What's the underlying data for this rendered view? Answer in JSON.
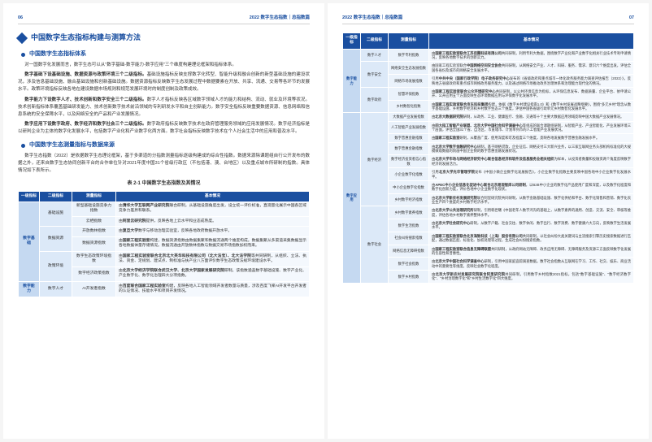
{
  "header": {
    "left_num": "06",
    "right_num": "07",
    "title": "2022 数字生态指数｜总指数篇"
  },
  "left": {
    "title": "中国数字生态指标构建与测算方法",
    "sub1": "中国数字生态指标体系",
    "p1": "对一国数字化发展而言，数字生态可以从\"数字基础-数字能力-数字应用\"三个维度构建理论框架和指标体系。",
    "p2_bold": "数字基础下设基础设施、数据资源与政策环境三个二级指标。",
    "p2": "基础设施指标反映支撑数字化转型、智能升级和融合创新的新型基础设施的建设状况，涉及信息基础设施、融合基础设施和创新基础设施。数据资源指标反映数字生态发展过程中数据要素在开放、共享、流通、交易等各环节的发展水平。政策环境指标反映各地在建设数据市场规则和规范发展环境时的制度创制及政策成效。",
    "p3_bold": "数字能力下设数字人才、技术创新和数字安全三个二级指标。",
    "p3": "数字人才指标反映各区域数字领域人才的能力和结构、流动、就业及环境等状况。技术创新指标体系覆盖基础研发能力、技术创新数字技术前沿领域的专利研发水平和自主创新能力。数字安全指标反映重要数据资源、信息网络和信息系统的安全保障水平，以及网络安全的产品和产业发展情况。",
    "p4_bold": "数字应用下设数字政府、数字经济和数字社会三个二级指标。",
    "p4": "数字政府指标反映数字技术在政府管理服务领域的应用发展情况。数字经济指标是以研判企业为主体的数字化发展水平，包括数字产业化和产业数字化两方面。数字社会指标反映数字技术在个人社会生活中的应用和普及水平。",
    "sub2": "中国数字生态测量指标与数据来源",
    "p5": "数字生态指数（2022）是依据数字生态理论框架，基于多渠道的分指数测量指标逐级构建成的综合性指数。数据来源除课题组自行公开发布的数据之外，还来自数字生态协同创新平台的合作单位针对2021年度中国31个省级行政区（不包括港、澳、台地区）以及重点城市所研制的指数。具体情况如下表所示。",
    "table_caption": "表 2-1  中国数字生态指数及其情况",
    "headers": [
      "一级指标",
      "二级指标",
      "测量指标",
      "基本情况"
    ],
    "rows": [
      {
        "l1": "数字基础",
        "l1rs": 6,
        "l2": "基础设施",
        "l2rs": 2,
        "l3": "新型基础设施竞争力指数",
        "desc": "由<b>清华大学互联网产业研究院</b>联合研制，从基础设施角度出发，设立统一评价标准，直观量化展示中国各区域竞争力差异和联系。"
      },
      {
        "l3": "云栖指数",
        "desc": "由<b>阿里云研究院</b>提供，反映各地上云水平和业态成熟度。"
      },
      {
        "l2": "数据资源",
        "l2rs": 2,
        "l3": "开放数林指数",
        "desc": "由<b>复旦大学</b>数字与移动治理实验室，反映各地政府数据开放水平。"
      },
      {
        "l3": "数据资源指数",
        "desc": "由<b>国家工程实验室</b>构建，数据资源指数由数据集聚和数据流通两个维度构成。数据集聚从多渠道采集数据显示各地数据体量存储情况。数据流通由开放数林指数与数据交易市场指数加权而来。"
      },
      {
        "l2": "政策环境",
        "l2rs": 2,
        "l3": "数字生态政策环境指数",
        "desc": "由<b>国家工程实验室联合北京北大英华科技有限公司（北大法宝）、北大法学院</b>等共同研制，从组织、立法、执法、资金、定规划、建试点、制标准与扶产业八方面评价数字生态政策法规环境建设水平。"
      },
      {
        "l3": "数字经济政策指数",
        "desc": "由<b>北京大学经济学院联合武汉大学、北京大学国家发展研究院</b>研制。该指数涵盖数字基础设施、数字产业化、产业数字化、数字化治理四大分项指数。"
      },
      {
        "l1": "数字能力",
        "l1rs": 1,
        "l2": "数字人才",
        "l2rs": 1,
        "l3": "AI开发者指数",
        "desc": "由<b>百度联合国家工程实验室</b>构建，反映各地人工智能领域开发者数量与质量，涉及百度飞桨AI开发平台开发者的认证情况、技能水平和项目开发情况。"
      }
    ]
  },
  "right_rows": [
    {
      "l1": "数字能力",
      "l1rs": 5,
      "l2": "数字人才",
      "l2rs": 1,
      "l3": "数字专利指数",
      "desc": "由<b>国家工程实验室联合江苏佰腾科技有限公司</b>共同研制，利用专利大数据，围绕数字产业化和产业数字化相关行业技术专利申请情况，反映各地数字技术的创新实力。"
    },
    {
      "l2": "数字安全",
      "l2rs": 2,
      "l3": "网络安全生态发展指数",
      "desc": "由国家工程实验室联合<b>中国网络空间安全协会</b>共同研制，从网络安全产业、人才、科研、服务、需求、意识六个维度出发，评估全国各省份及城市的网络安全发展水平。"
    },
    {
      "l3": "网络市场发展指数",
      "desc": "引用<b>中共中央（国家行政学院）电子政务研究中心</b>发布的《省级政府和重点城市一体化政务服务能力调查评估报告（2022）》，反映地方省级政府和重点城市网络政务服务能力，以及通过网络市场推动政务治理体系和治理能力现代化的情况。"
    },
    {
      "l2": "数字政府",
      "l2rs": 2,
      "l3": "智慧环保指数",
      "desc": "由<b>国家工程实验室联合公众环境研究中心</b>共同研制，以公共环境信息为指标，从环保信息发布、数据质量、企业平台、依申请公开、公开应用五个方面反映生态环境数据应用与环保数字化发展水平。"
    },
    {
      "l3": "乡村数智化指数",
      "desc": "由<b>国家工程实验室联合京东科技集团</b>构建，依据《数字乡村建设指南1.0》和《数字乡村发展战略纲要》，围绕\"多元乡村\"理念从数字基础设施、乡村数字经济和乡村数字生态三个维度，评估中国各省级行政单元乡村数智化发展水平。"
    },
    {
      "l1": "数字应用",
      "l1rs": 14,
      "l2": "数字经济",
      "l2rs": 8,
      "l3": "大数据产业发展指数",
      "desc": "由<b>北京大数据研究院</b>研制，从政务、工业、健康医疗、金融、交通等十个主要大数据应用领域反映中国大数据产业发展情况。"
    },
    {
      "l3": "人工智能产业发展指数",
      "desc": "由<b>四大指工智能产业联盟、北京大学中国社会科学调查中心</b>等组成的联合课题组研制，从智能产业、产业智能化、产业发展环境三个层面，评估全国31个省、自治区、市直辖市、计划单列市的人工智能产业发展状况。"
    },
    {
      "l3": "数字普惠金融指数",
      "desc": "由<b>国家工程实验室</b>研制，从覆盖广度、使用深度和可及程度三个维度，反映各地发展数字普惠金融发展水平。"
    },
    {
      "l3": "数字普惠金融指数",
      "desc": "由<b>北京大学数字金融研究中心</b>研制，基于网络贷款、企业征信、网络支付三大新兴业务，以三家互联网业务头部机构标准化的大规模微观数据的刻画中国企业侧的数字普惠金融发展状况。"
    },
    {
      "l3": "数字经济投资者信心指数",
      "desc": "由<b>北京大学市场与网络经济研究中心联合信息经济和软件及信息服务业相关组织</b>为样本，从投资者数量和投融资两个角度反映数字经济的发展活力。"
    },
    {
      "l3": "小企业数字化指数",
      "desc": "引用<b>北京大学光华管理学院</b>发布《中国小微企业数字化发展报告》，小企业数字化指数主要反映中国各地中小企业数字化发展水平。"
    },
    {
      "l3": "中小企业数字化指数",
      "desc": "由<b>APEC中小企业信息化促进中心联合北京易观智库公司研制</b>，以B2B中小企业的数字化产品使用广度和深度，以及数字化程度和数字化创新力度，评价各地中小企业数字化现状。"
    },
    {
      "l3": "乡村数字经济指数",
      "desc": "由<b>北京大学新农村发展研究院</b>联合阿里研究院共同研制，从数字金融基础设施、数字化供给和平台、数字化销售和营销、数字化农业生产四个维度的乡村数字经济水平。"
    },
    {
      "l2": "数字社会",
      "l2rs": 6,
      "l3": "乡村数字素养指数",
      "desc": "由<b>北京大学公共治理研究所</b>研制，引用韩世曙《中国老年人数字鸿沟的基础上，从数字素养的通用、创造、交流、安全、审核等维度，评估各地乡村数字素养整体水平。"
    },
    {
      "l3": "数字生活指数",
      "desc": "由<b>北京大学社会研究中心</b>研制，从数字户籍、社会交往、数字休闲、数字出行、数字消费、数字健康六大方向，反映数字生活发展水平。"
    },
    {
      "l3": "社会纠纷搜索指数",
      "desc": "由<b>国家工程实验室联合北京海致科技（上海）股份有限公司</b>共同研制，以社会纠纷大类关键词与主流搜索引擎历史搜索数据进行匹配，通过数据匹配、标准化、加权处理等过程，生成社会纠纷搜索指数。"
    },
    {
      "l3": "网络信息无障碍指数",
      "desc": "由<b>国家工程实验室联合信息无障碍联盟</b>共同研制，从政府网站无障碍、政务应用无障碍、无障碍服务及资源三方面反映数字化发展的包容性和普惠性。"
    },
    {
      "l3": "数字社会指数",
      "desc": "由<b>北京大学中国社会科学调查中心</b>研制，引用中国家庭追踪调查数据。数字社会指数从互联网在学习、工作、社交、娱乐、商业活动中的重要性等维度，反映社会数字化程度。"
    },
    {
      "l3": "数字乡村指数",
      "desc": "由<b>北京大学新农村发展研究院联合阿里研究院</b>共同研制，引用数字乡村指数2021指标，包括\"数字基础设施\"、\"数字经济数字化\"、\"乡村治理数字化\"和\"乡村生活数字化\"四大维度。"
    }
  ]
}
